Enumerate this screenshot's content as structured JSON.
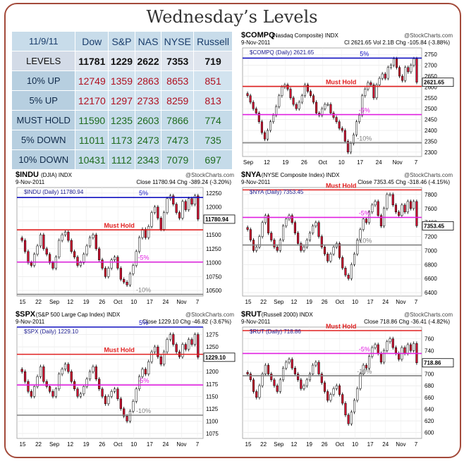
{
  "page_title": "Wednesday’s Levels",
  "table": {
    "date": "11/9/11",
    "columns": [
      "Dow",
      "S&P",
      "NAS",
      "NYSE",
      "Russell"
    ],
    "rows": [
      {
        "label": "LEVELS",
        "values": [
          "11781",
          "1229",
          "2622",
          "7353",
          "719"
        ]
      },
      {
        "label": "10% UP",
        "values": [
          "12749",
          "1359",
          "2863",
          "8653",
          "851"
        ]
      },
      {
        "label": "5% UP",
        "values": [
          "12170",
          "1297",
          "2733",
          "8259",
          "813"
        ]
      },
      {
        "label": "MUST HOLD",
        "values": [
          "11590",
          "1235",
          "2603",
          "7866",
          "774"
        ]
      },
      {
        "label": "5% DOWN",
        "values": [
          "11011",
          "1173",
          "2473",
          "7473",
          "735"
        ]
      },
      {
        "label": "10% DOWN",
        "values": [
          "10431",
          "1112",
          "2343",
          "7079",
          "697"
        ]
      }
    ]
  },
  "colors": {
    "up": "#b01020",
    "down": "#1e6b1e",
    "must_hold": "#e02020",
    "five_pct_down": "#e020e0",
    "ten_pct_down": "#808080",
    "five_pct_up": "#1010c0",
    "bull": "#ffffff",
    "bear": "#cc1030"
  },
  "chart_data": [
    {
      "id": "compq",
      "type": "candlestick",
      "symbol": "$COMPQ",
      "name": "Nasdaq Composite",
      "exchange": "INDX",
      "source": "@StockCharts.com",
      "date": "9-Nov-2011",
      "stats": "Cl 2621.65  Vol 2.1B  Chg -105.84 (-3.88%)",
      "legend": "$COMPQ (Daily) 2621.65",
      "last_label": "2621.65",
      "x_ticks": [
        "Sep",
        "12",
        "19",
        "26",
        "Oct",
        "10",
        "17",
        "24",
        "Nov",
        "7"
      ],
      "ylim": [
        2280,
        2780
      ],
      "y_ticks": [
        2300,
        2350,
        2400,
        2450,
        2500,
        2550,
        2600,
        2650,
        2700,
        2750
      ],
      "lines": [
        {
          "label": "5%",
          "value": 2733,
          "kind": "five_up"
        },
        {
          "label": "Must Hold",
          "value": 2603,
          "kind": "must"
        },
        {
          "label": "-5%",
          "value": 2473,
          "kind": "five_dn"
        },
        {
          "label": "-10%",
          "value": 2343,
          "kind": "ten_dn"
        }
      ],
      "close": [
        2560,
        2530,
        2500,
        2480,
        2440,
        2390,
        2360,
        2400,
        2440,
        2470,
        2510,
        2560,
        2600,
        2610,
        2590,
        2550,
        2520,
        2500,
        2530,
        2560,
        2610,
        2580,
        2560,
        2530,
        2480,
        2470,
        2500,
        2520,
        2520,
        2480,
        2460,
        2440,
        2410,
        2400,
        2350,
        2300,
        2340,
        2380,
        2440,
        2470,
        2560,
        2590,
        2620,
        2610,
        2550,
        2610,
        2640,
        2660,
        2640,
        2690,
        2700,
        2730,
        2690,
        2650,
        2630,
        2690,
        2670,
        2700,
        2730,
        2622
      ]
    },
    {
      "id": "indu",
      "type": "candlestick",
      "symbol": "$INDU",
      "name": "DJIA",
      "exchange": "INDX",
      "source": "@StockCharts.com",
      "date": "9-Nov-2011",
      "stats": "Close 11780.94  Chg -389.24 (-3.20%)",
      "legend": "$INDU (Daily) 11780.94",
      "last_label": "11780.94",
      "x_ticks": [
        "15",
        "22",
        "Sep",
        "12",
        "19",
        "26",
        "Oct",
        "10",
        "17",
        "24",
        "Nov",
        "7"
      ],
      "ylim": [
        10400,
        12350
      ],
      "y_ticks": [
        10500,
        10750,
        11000,
        11250,
        11500,
        11750,
        12000,
        12250
      ],
      "lines": [
        {
          "label": "5%",
          "value": 12170,
          "kind": "five_up"
        },
        {
          "label": "Must Hold",
          "value": 11590,
          "kind": "must"
        },
        {
          "label": "-5%",
          "value": 11011,
          "kind": "five_dn"
        },
        {
          "label": "-10%",
          "value": 10431,
          "kind": "ten_dn"
        }
      ],
      "close": [
        11400,
        11200,
        11000,
        10950,
        11150,
        11300,
        11500,
        11250,
        11150,
        11000,
        10900,
        11100,
        11400,
        11500,
        11550,
        11400,
        11200,
        11100,
        10950,
        11000,
        11150,
        11300,
        11450,
        11500,
        11250,
        11050,
        10900,
        10750,
        10900,
        11050,
        11100,
        10900,
        10700,
        10650,
        10600,
        10800,
        10950,
        11200,
        11450,
        11600,
        11450,
        11650,
        11900,
        12000,
        11800,
        11600,
        11900,
        12150,
        12200,
        12050,
        11900,
        11800,
        12100,
        11950,
        12150,
        12050,
        12200,
        11781
      ]
    },
    {
      "id": "nya",
      "type": "candlestick",
      "symbol": "$NYA",
      "name": "NYSE Composite Index",
      "exchange": "INDX",
      "source": "@StockCharts.com",
      "date": "9-Nov-2011",
      "stats": "Close 7353.45  Chg -318.46 (-4.15%)",
      "legend": "$NYA (Daily) 7353.45",
      "last_label": "7353.45",
      "x_ticks": [
        "15",
        "22",
        "Sep",
        "12",
        "19",
        "26",
        "Oct",
        "10",
        "17",
        "24",
        "Nov",
        "7"
      ],
      "ylim": [
        6350,
        7900
      ],
      "y_ticks": [
        6400,
        6600,
        6800,
        7000,
        7200,
        7400,
        7600,
        7800
      ],
      "lines": [
        {
          "label": "Must Hold",
          "value": 7866,
          "kind": "must"
        },
        {
          "label": "-5%",
          "value": 7473,
          "kind": "five_dn"
        },
        {
          "label": "-10%",
          "value": 7079,
          "kind": "ten_dn"
        }
      ],
      "close": [
        7300,
        7150,
        7000,
        7050,
        7200,
        7400,
        7500,
        7250,
        7150,
        7050,
        7000,
        7150,
        7350,
        7450,
        7500,
        7400,
        7250,
        7100,
        7000,
        7050,
        7150,
        7250,
        7350,
        7400,
        7200,
        7050,
        6950,
        6850,
        6950,
        7050,
        7100,
        6900,
        6750,
        6650,
        6600,
        6800,
        6950,
        7150,
        7300,
        7450,
        7400,
        7550,
        7650,
        7700,
        7500,
        7350,
        7600,
        7800,
        7800,
        7650,
        7550,
        7500,
        7650,
        7550,
        7700,
        7600,
        7700,
        7353
      ]
    },
    {
      "id": "spx",
      "type": "candlestick",
      "symbol": "$SPX",
      "name": "S&P 500 Large Cap Index",
      "exchange": "INDX",
      "source": "@StockCharts.com",
      "date": "9-Nov-2011",
      "stats": "Close 1229.10  Chg -46.82 (-3.67%)",
      "legend": "$SPX (Daily) 1229.10",
      "last_label": "1229.10",
      "x_ticks": [
        "15",
        "22",
        "Sep",
        "12",
        "19",
        "26",
        "Oct",
        "10",
        "17",
        "24",
        "Nov",
        "7"
      ],
      "ylim": [
        1065,
        1290
      ],
      "y_ticks": [
        1075,
        1100,
        1125,
        1150,
        1175,
        1200,
        1225,
        1250,
        1275
      ],
      "lines": [
        {
          "label": "5%",
          "value": 1297,
          "kind": "five_up"
        },
        {
          "label": "Must Hold",
          "value": 1235,
          "kind": "must"
        },
        {
          "label": "-5%",
          "value": 1173,
          "kind": "five_dn"
        },
        {
          "label": "-10%",
          "value": 1112,
          "kind": "ten_dn"
        }
      ],
      "close": [
        1200,
        1180,
        1160,
        1150,
        1170,
        1190,
        1210,
        1180,
        1170,
        1160,
        1150,
        1165,
        1195,
        1205,
        1215,
        1200,
        1180,
        1165,
        1150,
        1155,
        1170,
        1185,
        1200,
        1210,
        1185,
        1165,
        1150,
        1135,
        1150,
        1160,
        1165,
        1145,
        1125,
        1110,
        1100,
        1120,
        1140,
        1165,
        1190,
        1205,
        1195,
        1220,
        1240,
        1250,
        1230,
        1215,
        1240,
        1265,
        1275,
        1255,
        1240,
        1230,
        1255,
        1245,
        1265,
        1255,
        1275,
        1229
      ]
    },
    {
      "id": "rut",
      "type": "candlestick",
      "symbol": "$RUT",
      "name": "Russell 2000",
      "exchange": "INDX",
      "source": "@StockCharts.com",
      "date": "9-Nov-2011",
      "stats": "Close 718.86  Chg -36.41 (-4.82%)",
      "legend": "$RUT (Daily) 718.86",
      "last_label": "718.86",
      "x_ticks": [
        "15",
        "22",
        "Sep",
        "12",
        "19",
        "26",
        "Oct",
        "10",
        "17",
        "24",
        "Nov",
        "7"
      ],
      "ylim": [
        590,
        780
      ],
      "y_ticks": [
        600,
        620,
        640,
        660,
        680,
        700,
        720,
        740,
        760
      ],
      "lines": [
        {
          "label": "Must Hold",
          "value": 774,
          "kind": "must"
        },
        {
          "label": "-5%",
          "value": 735,
          "kind": "five_dn"
        },
        {
          "label": "-10%",
          "value": 697,
          "kind": "ten_dn"
        }
      ],
      "close": [
        700,
        690,
        670,
        660,
        680,
        700,
        715,
        700,
        690,
        680,
        670,
        690,
        710,
        720,
        725,
        710,
        700,
        690,
        675,
        680,
        690,
        700,
        715,
        720,
        700,
        685,
        670,
        655,
        665,
        675,
        680,
        665,
        650,
        630,
        615,
        635,
        655,
        675,
        700,
        715,
        710,
        730,
        745,
        750,
        735,
        720,
        740,
        755,
        760,
        745,
        735,
        725,
        745,
        735,
        750,
        740,
        752,
        719
      ]
    }
  ]
}
